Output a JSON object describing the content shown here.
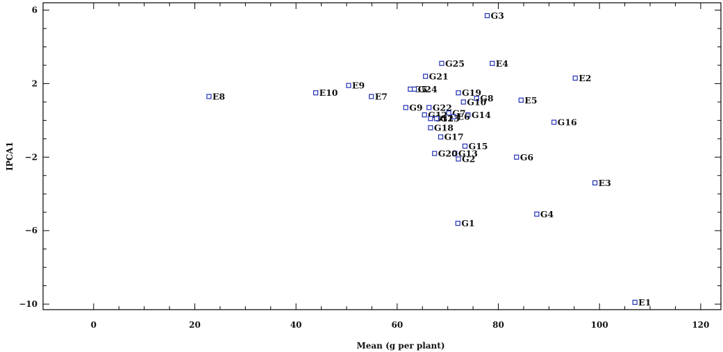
{
  "chart_data": {
    "type": "scatter",
    "title": "",
    "xlabel": "Mean (g per plant)",
    "ylabel": "IPCA1",
    "xlim": [
      -10,
      124
    ],
    "ylim": [
      -10.3,
      6.4
    ],
    "xticks": [
      0,
      20,
      40,
      60,
      80,
      100,
      120
    ],
    "yticks": [
      -10,
      -6,
      -2,
      2,
      6
    ],
    "marker_color": "#1f2fb5",
    "legend": "none",
    "grid": false,
    "points": [
      {
        "label": "G3",
        "x": 77.8,
        "y": 5.7
      },
      {
        "label": "E4",
        "x": 78.8,
        "y": 3.1
      },
      {
        "label": "G25",
        "x": 68.8,
        "y": 3.1
      },
      {
        "label": "G21",
        "x": 65.6,
        "y": 2.4
      },
      {
        "label": "G5",
        "x": 62.6,
        "y": 1.7
      },
      {
        "label": "G24",
        "x": 63.4,
        "y": 1.7
      },
      {
        "label": "E2",
        "x": 95.2,
        "y": 2.3
      },
      {
        "label": "E9",
        "x": 50.4,
        "y": 1.9
      },
      {
        "label": "E10",
        "x": 43.9,
        "y": 1.5
      },
      {
        "label": "E7",
        "x": 54.9,
        "y": 1.3
      },
      {
        "label": "E8",
        "x": 22.8,
        "y": 1.3
      },
      {
        "label": "G19",
        "x": 72.1,
        "y": 1.5
      },
      {
        "label": "G8",
        "x": 75.7,
        "y": 1.2
      },
      {
        "label": "E5",
        "x": 84.5,
        "y": 1.1
      },
      {
        "label": "G22",
        "x": 66.3,
        "y": 0.7
      },
      {
        "label": "G10",
        "x": 73.1,
        "y": 1.0
      },
      {
        "label": "G9",
        "x": 61.7,
        "y": 0.7
      },
      {
        "label": "G7",
        "x": 70.2,
        "y": 0.4
      },
      {
        "label": "G12",
        "x": 65.4,
        "y": 0.3
      },
      {
        "label": "G14",
        "x": 74.0,
        "y": 0.3
      },
      {
        "label": "E6",
        "x": 71.2,
        "y": 0.2
      },
      {
        "label": "G11",
        "x": 66.6,
        "y": 0.1
      },
      {
        "label": "G23",
        "x": 67.8,
        "y": 0.1
      },
      {
        "label": "G18",
        "x": 66.6,
        "y": -0.4
      },
      {
        "label": "G16",
        "x": 91.0,
        "y": -0.1
      },
      {
        "label": "G17",
        "x": 68.6,
        "y": -0.9
      },
      {
        "label": "G15",
        "x": 73.4,
        "y": -1.4
      },
      {
        "label": "G13",
        "x": 71.4,
        "y": -1.8
      },
      {
        "label": "G20",
        "x": 67.4,
        "y": -1.8
      },
      {
        "label": "G2",
        "x": 72.1,
        "y": -2.1
      },
      {
        "label": "G6",
        "x": 83.6,
        "y": -2.0
      },
      {
        "label": "E3",
        "x": 99.1,
        "y": -3.4
      },
      {
        "label": "G4",
        "x": 87.6,
        "y": -5.1
      },
      {
        "label": "G1",
        "x": 72.0,
        "y": -5.6
      },
      {
        "label": "E1",
        "x": 107.0,
        "y": -9.9
      }
    ]
  }
}
